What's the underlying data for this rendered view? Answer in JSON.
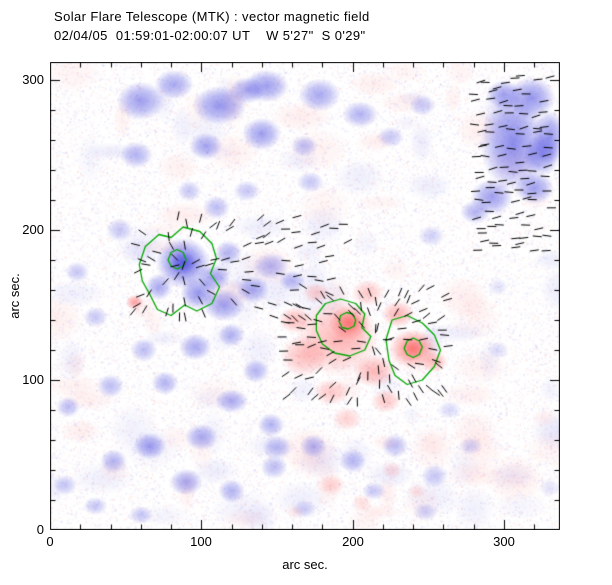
{
  "header": {
    "title": "Solar Flare Telescope (MTK) : vector magnetic field",
    "subtitle": "02/04/05  01:59:01-02:00:07 UT    W 5'27\"  S 0'29\""
  },
  "axes": {
    "x": {
      "label": "arc sec.",
      "ticks": [
        "0",
        "100",
        "200",
        "300"
      ]
    },
    "y": {
      "label": "arc sec.",
      "ticks": [
        "0",
        "100",
        "200",
        "300"
      ]
    }
  },
  "chart_data": {
    "type": "heatmap",
    "title": "Solar Flare Telescope (MTK) : vector magnetic field",
    "subtitle": "02/04/05  01:59:01-02:00:07 UT    W 5'27\"  S 0'29\"",
    "xlabel": "arc sec.",
    "ylabel": "arc sec.",
    "xlim": [
      0,
      337
    ],
    "ylim": [
      0,
      312
    ],
    "grid": false,
    "colors": {
      "negative_polarity_blue": "#3e3ede",
      "positive_polarity_red": "#fc4848",
      "contour": "#00a800",
      "vectors": "#000000",
      "background": "#ffffff"
    },
    "scale": {
      "x": 1.5134,
      "y": 1.5
    },
    "blobs": [
      [
        60,
        286,
        16,
        13,
        0.5,
        "b"
      ],
      [
        82,
        297,
        13,
        10,
        0.45,
        "b"
      ],
      [
        112,
        283,
        18,
        13,
        0.55,
        "b"
      ],
      [
        143,
        296,
        15,
        11,
        0.5,
        "b"
      ],
      [
        140,
        264,
        13,
        11,
        0.5,
        "b"
      ],
      [
        178,
        290,
        14,
        11,
        0.45,
        "b"
      ],
      [
        205,
        277,
        12,
        9,
        0.4,
        "b"
      ],
      [
        103,
        256,
        11,
        9,
        0.45,
        "b"
      ],
      [
        57,
        250,
        11,
        9,
        0.4,
        "b"
      ],
      [
        168,
        256,
        9,
        7,
        0.35,
        "b"
      ],
      [
        225,
        262,
        9,
        7,
        0.3,
        "b"
      ],
      [
        246,
        283,
        9,
        7,
        0.3,
        "b"
      ],
      [
        130,
        293,
        12,
        9,
        0.45,
        "b"
      ],
      [
        306,
        258,
        22,
        32,
        0.6,
        "b"
      ],
      [
        318,
        288,
        16,
        14,
        0.55,
        "b"
      ],
      [
        292,
        222,
        14,
        12,
        0.5,
        "b"
      ],
      [
        320,
        228,
        13,
        11,
        0.5,
        "b"
      ],
      [
        330,
        262,
        11,
        18,
        0.55,
        "b"
      ],
      [
        281,
        212,
        10,
        8,
        0.4,
        "b"
      ],
      [
        300,
        290,
        12,
        10,
        0.5,
        "b"
      ],
      [
        325,
        250,
        12,
        14,
        0.55,
        "b"
      ],
      [
        88,
        178,
        18,
        17,
        0.7,
        "b"
      ],
      [
        88,
        178,
        9,
        8,
        0.5,
        "b"
      ],
      [
        98,
        158,
        12,
        11,
        0.55,
        "b"
      ],
      [
        72,
        162,
        9,
        9,
        0.45,
        "b"
      ],
      [
        108,
        168,
        11,
        9,
        0.5,
        "b"
      ],
      [
        118,
        185,
        9,
        8,
        0.4,
        "b"
      ],
      [
        115,
        150,
        14,
        11,
        0.5,
        "b"
      ],
      [
        134,
        160,
        11,
        9,
        0.45,
        "b"
      ],
      [
        146,
        176,
        12,
        9,
        0.4,
        "b"
      ],
      [
        160,
        166,
        9,
        7,
        0.35,
        "b"
      ],
      [
        46,
        200,
        9,
        8,
        0.3,
        "b"
      ],
      [
        110,
        215,
        9,
        8,
        0.35,
        "b"
      ],
      [
        130,
        226,
        9,
        7,
        0.3,
        "b"
      ],
      [
        92,
        226,
        8,
        7,
        0.3,
        "b"
      ],
      [
        172,
        232,
        9,
        7,
        0.3,
        "b"
      ],
      [
        96,
        122,
        11,
        9,
        0.45,
        "b"
      ],
      [
        120,
        130,
        9,
        8,
        0.4,
        "b"
      ],
      [
        62,
        120,
        9,
        8,
        0.35,
        "b"
      ],
      [
        76,
        98,
        9,
        8,
        0.4,
        "b"
      ],
      [
        40,
        96,
        9,
        8,
        0.35,
        "b"
      ],
      [
        30,
        142,
        8,
        7,
        0.3,
        "b"
      ],
      [
        18,
        172,
        8,
        7,
        0.3,
        "b"
      ],
      [
        12,
        82,
        8,
        7,
        0.35,
        "b"
      ],
      [
        136,
        106,
        9,
        8,
        0.4,
        "b"
      ],
      [
        120,
        86,
        11,
        8,
        0.45,
        "b"
      ],
      [
        146,
        70,
        9,
        8,
        0.4,
        "b"
      ],
      [
        100,
        62,
        11,
        9,
        0.45,
        "b"
      ],
      [
        66,
        56,
        11,
        9,
        0.5,
        "b"
      ],
      [
        42,
        46,
        9,
        8,
        0.4,
        "b"
      ],
      [
        90,
        32,
        11,
        9,
        0.45,
        "b"
      ],
      [
        120,
        26,
        9,
        8,
        0.4,
        "b"
      ],
      [
        148,
        42,
        9,
        8,
        0.35,
        "b"
      ],
      [
        174,
        56,
        9,
        8,
        0.4,
        "b"
      ],
      [
        200,
        46,
        9,
        8,
        0.35,
        "b"
      ],
      [
        228,
        56,
        9,
        8,
        0.35,
        "b"
      ],
      [
        254,
        36,
        9,
        8,
        0.3,
        "b"
      ],
      [
        278,
        56,
        8,
        6,
        0.25,
        "b"
      ],
      [
        214,
        26,
        8,
        6,
        0.3,
        "b"
      ],
      [
        248,
        12,
        8,
        6,
        0.25,
        "b"
      ],
      [
        30,
        16,
        8,
        6,
        0.3,
        "b"
      ],
      [
        60,
        10,
        8,
        6,
        0.3,
        "b"
      ],
      [
        168,
        14,
        8,
        6,
        0.25,
        "b"
      ],
      [
        264,
        80,
        8,
        6,
        0.2,
        "b"
      ],
      [
        296,
        120,
        7,
        6,
        0.18,
        "b"
      ],
      [
        330,
        28,
        7,
        6,
        0.15,
        "b"
      ],
      [
        10,
        30,
        8,
        7,
        0.3,
        "b"
      ],
      [
        150,
        55,
        10,
        8,
        0.35,
        "b"
      ],
      [
        252,
        196,
        9,
        7,
        0.25,
        "b"
      ],
      [
        296,
        162,
        7,
        6,
        0.15,
        "b"
      ],
      [
        190,
        128,
        28,
        26,
        0.38,
        "r"
      ],
      [
        168,
        116,
        16,
        14,
        0.35,
        "r"
      ],
      [
        198,
        138,
        14,
        12,
        0.5,
        "r"
      ],
      [
        240,
        121,
        16,
        13,
        0.55,
        "r"
      ],
      [
        240,
        121,
        8,
        7,
        0.4,
        "r"
      ],
      [
        198,
        138,
        8,
        7,
        0.35,
        "r"
      ],
      [
        214,
        106,
        14,
        11,
        0.4,
        "r"
      ],
      [
        186,
        92,
        12,
        9,
        0.3,
        "r"
      ],
      [
        162,
        140,
        11,
        9,
        0.35,
        "r"
      ],
      [
        210,
        158,
        11,
        9,
        0.3,
        "r"
      ],
      [
        230,
        144,
        11,
        9,
        0.4,
        "r"
      ],
      [
        254,
        112,
        9,
        7,
        0.35,
        "r"
      ],
      [
        176,
        158,
        9,
        7,
        0.28,
        "r"
      ],
      [
        196,
        74,
        10,
        8,
        0.25,
        "r"
      ],
      [
        222,
        86,
        10,
        8,
        0.3,
        "r"
      ],
      [
        56,
        152,
        6,
        5,
        0.5,
        "r"
      ],
      [
        186,
        30,
        9,
        7,
        0.22,
        "r"
      ],
      [
        206,
        18,
        7,
        6,
        0.18,
        "r"
      ],
      [
        226,
        40,
        7,
        6,
        0.18,
        "r"
      ],
      [
        242,
        26,
        6,
        5,
        0.15,
        "r"
      ],
      [
        162,
        12,
        6,
        5,
        0.12,
        "r"
      ]
    ],
    "contours": [
      [
        [
          88,
          202
        ],
        [
          99,
          199
        ],
        [
          107,
          191
        ],
        [
          110,
          181
        ],
        [
          106,
          171
        ],
        [
          112,
          162
        ],
        [
          107,
          151
        ],
        [
          97,
          146
        ],
        [
          89,
          150
        ],
        [
          80,
          143
        ],
        [
          71,
          147
        ],
        [
          66,
          157
        ],
        [
          61,
          166
        ],
        [
          59,
          177
        ],
        [
          63,
          189
        ],
        [
          72,
          197
        ],
        [
          80,
          195
        ]
      ],
      [
        [
          90,
          180
        ],
        [
          88,
          185
        ],
        [
          84,
          187
        ],
        [
          80,
          185
        ],
        [
          78,
          180
        ],
        [
          80,
          176
        ],
        [
          84,
          174
        ],
        [
          88,
          176
        ]
      ],
      [
        [
          182,
          151
        ],
        [
          192,
          154
        ],
        [
          202,
          151
        ],
        [
          208,
          144
        ],
        [
          206,
          135
        ],
        [
          212,
          129
        ],
        [
          208,
          120
        ],
        [
          198,
          116
        ],
        [
          188,
          118
        ],
        [
          180,
          124
        ],
        [
          176,
          133
        ],
        [
          176,
          143
        ]
      ],
      [
        [
          202,
          140
        ],
        [
          200,
          144
        ],
        [
          196,
          145
        ],
        [
          192,
          143
        ],
        [
          191,
          139
        ],
        [
          193,
          135
        ],
        [
          197,
          134
        ],
        [
          201,
          136
        ]
      ],
      [
        [
          226,
          140
        ],
        [
          236,
          143
        ],
        [
          246,
          138
        ],
        [
          254,
          130
        ],
        [
          258,
          120
        ],
        [
          254,
          109
        ],
        [
          246,
          100
        ],
        [
          236,
          97
        ],
        [
          228,
          103
        ],
        [
          224,
          113
        ],
        [
          222,
          127
        ]
      ],
      [
        [
          246,
          122
        ],
        [
          244,
          126
        ],
        [
          240,
          128
        ],
        [
          236,
          126
        ],
        [
          234,
          121
        ],
        [
          236,
          117
        ],
        [
          240,
          115
        ],
        [
          244,
          117
        ]
      ]
    ],
    "vector_regions": [
      {
        "x0": 58,
        "x1": 200,
        "y0": 142,
        "y1": 210,
        "step": 8,
        "fill": 0.62,
        "mode": "radial",
        "cx": 88,
        "cy": 176,
        "spread": 0.7,
        "len": 9,
        "seed": 7
      },
      {
        "x0": 156,
        "x1": 266,
        "y0": 88,
        "y1": 166,
        "step": 8,
        "fill": 0.7,
        "mode": "radial",
        "cx": 214,
        "cy": 126,
        "spread": 0.7,
        "len": 9,
        "seed": 11
      },
      {
        "x0": 283,
        "x1": 335,
        "y0": 188,
        "y1": 306,
        "step": 7.5,
        "fill": 0.85,
        "mode": "fixed",
        "angle": 5,
        "spread": 0.5,
        "len": 9,
        "seed": 21
      }
    ]
  }
}
